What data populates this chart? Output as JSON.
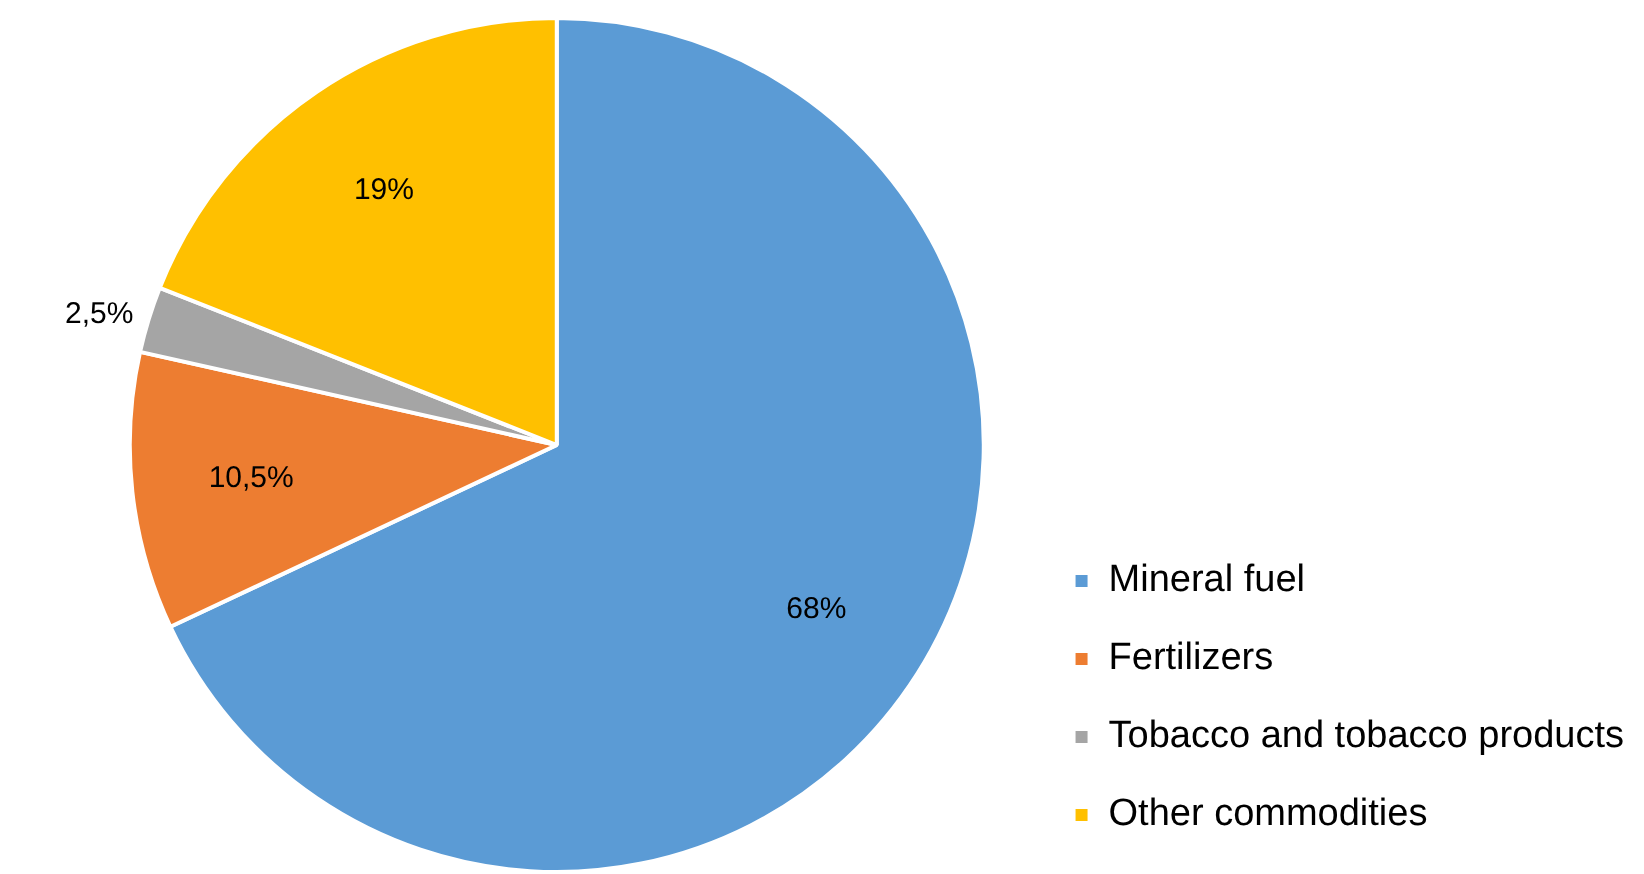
{
  "chart_data": {
    "type": "pie",
    "categories": [
      "Mineral fuel",
      "Fertilizers",
      "Tobacco and tobacco products",
      "Other commodities"
    ],
    "values": [
      68,
      10.5,
      2.5,
      19
    ],
    "value_labels": [
      "68%",
      "10,5%",
      "2,5%",
      "19%"
    ],
    "colors": [
      "#5b9bd5",
      "#ed7d31",
      "#a5a5a5",
      "#ffc000"
    ],
    "legend": "right"
  }
}
